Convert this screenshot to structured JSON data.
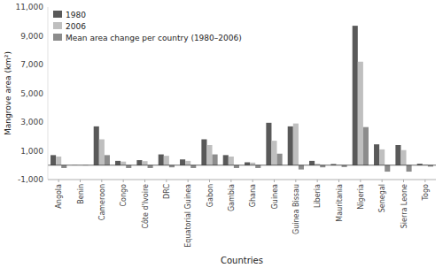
{
  "chart_data": {
    "type": "bar",
    "xlabel": "Countries",
    "ylabel": "Mangrove area (km²)",
    "categories": [
      "Angola",
      "Benin",
      "Cameroon",
      "Congo",
      "Côte d'Ivoire",
      "DRC",
      "Equatorial Guinea",
      "Gabon",
      "Gambia",
      "Ghana",
      "Guinea",
      "Guinea Bissau",
      "Liberia",
      "Mauritania",
      "Nigeria",
      "Senegal",
      "Sierra Leone",
      "Togo"
    ],
    "series": [
      {
        "name": "1980",
        "color": "#595959",
        "values": [
          700,
          10,
          2700,
          300,
          350,
          750,
          400,
          1800,
          700,
          200,
          2950,
          2700,
          300,
          80,
          9700,
          1450,
          1400,
          100
        ]
      },
      {
        "name": "2006",
        "color": "#bfbfbf",
        "values": [
          600,
          5,
          1800,
          250,
          280,
          650,
          300,
          1400,
          600,
          180,
          1700,
          2900,
          100,
          30,
          7200,
          1100,
          1050,
          50
        ]
      },
      {
        "name": "Mean area change per country (1980–2006)",
        "color": "#8c8c8c",
        "values": [
          -200,
          -20,
          700,
          -200,
          -200,
          -150,
          -200,
          750,
          -200,
          -200,
          800,
          -300,
          -150,
          -130,
          2650,
          -450,
          -450,
          -100
        ]
      }
    ],
    "ylim": [
      -1000,
      11000
    ],
    "yticks": [
      {
        "value": -1000,
        "label": "-1,000"
      },
      {
        "value": 1000,
        "label": "1,000"
      },
      {
        "value": 3000,
        "label": "3,000"
      },
      {
        "value": 5000,
        "label": "5,000"
      },
      {
        "value": 7000,
        "label": "7,000"
      },
      {
        "value": 9000,
        "label": "9,000"
      },
      {
        "value": 11000,
        "label": "11,000"
      }
    ],
    "grid": false,
    "legend": "upper left"
  }
}
